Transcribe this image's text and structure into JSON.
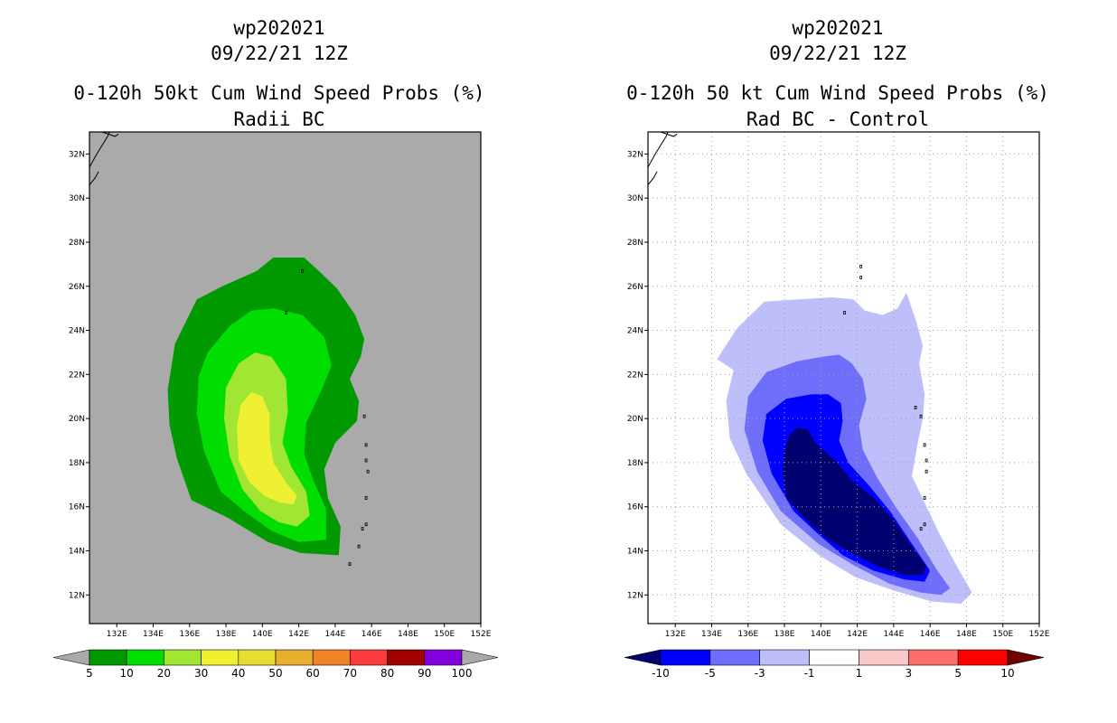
{
  "chart_data": [
    {
      "type": "heatmap",
      "title_lines": [
        "wp202021",
        "09/22/21 12Z",
        "0-120h 50kt Cum Wind Speed Probs (%)",
        "Radii BC"
      ],
      "xlabel": "",
      "ylabel": "",
      "xlim": [
        130.5,
        152.0
      ],
      "ylim": [
        10.7,
        33.0
      ],
      "x_ticks": [
        "132E",
        "134E",
        "136E",
        "138E",
        "140E",
        "142E",
        "144E",
        "146E",
        "148E",
        "150E",
        "152E"
      ],
      "y_ticks": [
        "12N",
        "14N",
        "16N",
        "18N",
        "20N",
        "22N",
        "24N",
        "26N",
        "28N",
        "30N",
        "32N"
      ],
      "grid": false,
      "background": "#aaaaaa",
      "colorbar": {
        "labels": [
          "5",
          "10",
          "20",
          "30",
          "40",
          "50",
          "60",
          "70",
          "80",
          "90",
          "100"
        ],
        "colors": [
          "#009900",
          "#00dd00",
          "#a0e632",
          "#f0f032",
          "#e6dc32",
          "#e6af2d",
          "#f08228",
          "#fa3c3c",
          "#a00000",
          "#8200dc"
        ],
        "below_color": "#aaaaaa",
        "above_color": "#aaaaaa"
      },
      "contours": [
        {
          "level": "5",
          "color": "#009900",
          "polygon": [
            [
              140.6,
              27.3
            ],
            [
              142.3,
              27.3
            ],
            [
              143.1,
              26.7
            ],
            [
              144.1,
              25.9
            ],
            [
              145.1,
              24.7
            ],
            [
              145.6,
              23.6
            ],
            [
              145.4,
              22.8
            ],
            [
              144.8,
              21.8
            ],
            [
              145.3,
              20.8
            ],
            [
              145.2,
              19.9
            ],
            [
              144.0,
              18.9
            ],
            [
              143.4,
              17.7
            ],
            [
              143.6,
              16.4
            ],
            [
              144.3,
              15.1
            ],
            [
              144.2,
              13.8
            ],
            [
              142.1,
              13.9
            ],
            [
              140.3,
              14.4
            ],
            [
              138.1,
              15.5
            ],
            [
              136.1,
              16.3
            ],
            [
              135.3,
              18.2
            ],
            [
              134.9,
              19.7
            ],
            [
              134.8,
              21.3
            ],
            [
              135.2,
              23.4
            ],
            [
              136.4,
              25.4
            ],
            [
              137.8,
              26.0
            ],
            [
              139.7,
              26.7
            ]
          ]
        },
        {
          "level": "10",
          "color": "#00dd00",
          "polygon": [
            [
              140.6,
              25.0
            ],
            [
              142.2,
              24.7
            ],
            [
              143.4,
              23.7
            ],
            [
              143.8,
              22.4
            ],
            [
              143.2,
              21.2
            ],
            [
              142.4,
              19.8
            ],
            [
              142.3,
              18.4
            ],
            [
              142.8,
              17.2
            ],
            [
              143.5,
              15.9
            ],
            [
              143.5,
              14.5
            ],
            [
              142.0,
              14.4
            ],
            [
              140.5,
              14.9
            ],
            [
              139.0,
              15.8
            ],
            [
              137.7,
              16.7
            ],
            [
              136.8,
              18.5
            ],
            [
              136.4,
              20.2
            ],
            [
              136.5,
              21.9
            ],
            [
              137.0,
              23.0
            ],
            [
              138.2,
              24.2
            ],
            [
              139.4,
              24.9
            ]
          ]
        },
        {
          "level": "20",
          "color": "#a0e632",
          "polygon": [
            [
              139.6,
              23.0
            ],
            [
              140.5,
              22.8
            ],
            [
              141.3,
              21.8
            ],
            [
              141.4,
              20.3
            ],
            [
              141.1,
              18.9
            ],
            [
              141.6,
              17.8
            ],
            [
              142.4,
              16.7
            ],
            [
              142.6,
              15.6
            ],
            [
              141.9,
              15.1
            ],
            [
              140.9,
              15.3
            ],
            [
              139.9,
              15.8
            ],
            [
              138.9,
              16.8
            ],
            [
              138.2,
              18.3
            ],
            [
              137.9,
              20.0
            ],
            [
              138.0,
              21.4
            ],
            [
              138.7,
              22.5
            ]
          ]
        },
        {
          "level": "30",
          "color": "#f0f032",
          "polygon": [
            [
              139.4,
              21.2
            ],
            [
              140.0,
              21.0
            ],
            [
              140.4,
              20.2
            ],
            [
              140.4,
              19.1
            ],
            [
              140.6,
              18.0
            ],
            [
              141.3,
              17.1
            ],
            [
              141.9,
              16.5
            ],
            [
              141.7,
              16.1
            ],
            [
              140.9,
              16.2
            ],
            [
              140.1,
              16.5
            ],
            [
              139.3,
              17.1
            ],
            [
              138.7,
              18.1
            ],
            [
              138.6,
              19.6
            ],
            [
              138.8,
              20.6
            ]
          ]
        }
      ],
      "coastlines": {
        "japan_lines": [
          [
            [
              130.5,
              31.4
            ],
            [
              130.9,
              32.0
            ],
            [
              131.2,
              32.4
            ],
            [
              131.5,
              32.8
            ],
            [
              131.6,
              33.0
            ]
          ],
          [
            [
              130.5,
              30.6
            ],
            [
              130.8,
              30.9
            ],
            [
              131.0,
              31.2
            ]
          ],
          [
            [
              131.2,
              33.0
            ],
            [
              131.9,
              32.8
            ],
            [
              132.1,
              32.9
            ]
          ]
        ],
        "islands": [
          [
            142.2,
            26.7
          ],
          [
            141.3,
            24.8
          ],
          [
            145.6,
            20.1
          ],
          [
            145.7,
            18.8
          ],
          [
            145.7,
            18.1
          ],
          [
            145.8,
            17.6
          ],
          [
            145.7,
            16.4
          ],
          [
            145.7,
            15.2
          ],
          [
            145.5,
            15.0
          ],
          [
            145.3,
            14.2
          ],
          [
            144.8,
            13.4
          ]
        ]
      }
    },
    {
      "type": "heatmap",
      "title_lines": [
        "wp202021",
        "09/22/21 12Z",
        "0-120h 50 kt Cum Wind Speed Probs (%)",
        "Rad BC - Control"
      ],
      "xlabel": "",
      "ylabel": "",
      "xlim": [
        130.5,
        152.0
      ],
      "ylim": [
        10.7,
        33.0
      ],
      "x_ticks": [
        "132E",
        "134E",
        "136E",
        "138E",
        "140E",
        "142E",
        "144E",
        "146E",
        "148E",
        "150E",
        "152E"
      ],
      "y_ticks": [
        "12N",
        "14N",
        "16N",
        "18N",
        "20N",
        "22N",
        "24N",
        "26N",
        "28N",
        "30N",
        "32N"
      ],
      "grid": true,
      "background": "#ffffff",
      "colorbar": {
        "labels": [
          "-10",
          "-5",
          "-3",
          "-1",
          "1",
          "3",
          "5",
          "10"
        ],
        "colors": [
          "#0000ff",
          "#6e6efa",
          "#bebefa",
          "#ffffff",
          "#fac8c8",
          "#fa6e6e",
          "#ff0000"
        ],
        "below_color": "#000070",
        "above_color": "#700000"
      },
      "contours": [
        {
          "level": "-1",
          "color": "#bebefa",
          "polygon": [
            [
              140.6,
              25.5
            ],
            [
              141.8,
              25.4
            ],
            [
              142.4,
              24.9
            ],
            [
              143.4,
              24.7
            ],
            [
              144.2,
              25.0
            ],
            [
              144.7,
              25.7
            ],
            [
              145.2,
              24.5
            ],
            [
              145.6,
              23.3
            ],
            [
              145.4,
              22.5
            ],
            [
              145.7,
              21.1
            ],
            [
              145.6,
              20.0
            ],
            [
              145.3,
              18.8
            ],
            [
              145.0,
              17.4
            ],
            [
              146.5,
              14.8
            ],
            [
              147.4,
              13.4
            ],
            [
              148.3,
              12.1
            ],
            [
              147.7,
              11.6
            ],
            [
              146.1,
              11.7
            ],
            [
              144.0,
              12.2
            ],
            [
              141.9,
              12.8
            ],
            [
              139.9,
              13.8
            ],
            [
              137.8,
              15.2
            ],
            [
              135.9,
              17.5
            ],
            [
              135.0,
              19.1
            ],
            [
              134.8,
              20.8
            ],
            [
              135.2,
              22.2
            ],
            [
              134.3,
              22.7
            ],
            [
              135.4,
              24.1
            ],
            [
              136.9,
              25.3
            ],
            [
              138.7,
              25.4
            ]
          ]
        },
        {
          "level": "-3",
          "color": "#6e6efa",
          "polygon": [
            [
              140.1,
              22.8
            ],
            [
              141.0,
              22.9
            ],
            [
              141.7,
              22.5
            ],
            [
              142.3,
              21.8
            ],
            [
              142.5,
              20.9
            ],
            [
              142.1,
              19.7
            ],
            [
              142.3,
              18.6
            ],
            [
              143.1,
              17.3
            ],
            [
              144.1,
              16.0
            ],
            [
              145.3,
              14.6
            ],
            [
              146.4,
              13.1
            ],
            [
              147.1,
              12.3
            ],
            [
              146.6,
              12.0
            ],
            [
              145.5,
              12.1
            ],
            [
              143.8,
              12.5
            ],
            [
              141.9,
              13.3
            ],
            [
              139.9,
              14.3
            ],
            [
              137.8,
              15.8
            ],
            [
              136.5,
              17.6
            ],
            [
              135.8,
              19.5
            ],
            [
              136.0,
              21.0
            ],
            [
              137.0,
              22.1
            ],
            [
              138.7,
              22.6
            ]
          ]
        },
        {
          "level": "-5",
          "color": "#0000ff",
          "polygon": [
            [
              139.5,
              21.1
            ],
            [
              140.4,
              21.1
            ],
            [
              141.1,
              20.7
            ],
            [
              141.2,
              19.9
            ],
            [
              141.0,
              19.0
            ],
            [
              141.5,
              18.0
            ],
            [
              142.6,
              17.0
            ],
            [
              143.8,
              15.8
            ],
            [
              145.1,
              14.2
            ],
            [
              146.0,
              13.1
            ],
            [
              145.7,
              12.6
            ],
            [
              144.6,
              12.7
            ],
            [
              142.9,
              13.1
            ],
            [
              141.2,
              13.8
            ],
            [
              139.8,
              14.8
            ],
            [
              138.5,
              15.8
            ],
            [
              137.3,
              17.5
            ],
            [
              136.8,
              19.0
            ],
            [
              137.0,
              20.2
            ],
            [
              138.1,
              20.9
            ]
          ]
        },
        {
          "level": "-10",
          "color": "#000070",
          "polygon": [
            [
              138.7,
              19.6
            ],
            [
              139.3,
              19.5
            ],
            [
              139.7,
              18.9
            ],
            [
              140.8,
              18.1
            ],
            [
              141.7,
              17.2
            ],
            [
              142.9,
              16.4
            ],
            [
              144.0,
              15.4
            ],
            [
              145.0,
              14.2
            ],
            [
              145.8,
              13.3
            ],
            [
              145.6,
              12.9
            ],
            [
              144.6,
              12.9
            ],
            [
              143.1,
              13.3
            ],
            [
              141.7,
              13.9
            ],
            [
              140.4,
              14.5
            ],
            [
              139.2,
              15.4
            ],
            [
              138.1,
              16.4
            ],
            [
              137.9,
              17.6
            ],
            [
              138.0,
              18.6
            ],
            [
              138.3,
              19.3
            ]
          ]
        }
      ],
      "coastlines": {
        "japan_lines": [
          [
            [
              130.5,
              31.4
            ],
            [
              130.9,
              32.0
            ],
            [
              131.2,
              32.4
            ],
            [
              131.5,
              32.8
            ],
            [
              131.6,
              33.0
            ]
          ],
          [
            [
              130.5,
              30.6
            ],
            [
              130.8,
              30.9
            ],
            [
              131.0,
              31.2
            ]
          ],
          [
            [
              131.2,
              33.0
            ],
            [
              131.9,
              32.8
            ],
            [
              132.1,
              32.9
            ]
          ]
        ],
        "islands": [
          [
            142.2,
            26.9
          ],
          [
            142.2,
            26.4
          ],
          [
            141.3,
            24.8
          ],
          [
            145.2,
            20.5
          ],
          [
            145.5,
            20.1
          ],
          [
            145.7,
            18.8
          ],
          [
            145.8,
            18.1
          ],
          [
            145.8,
            17.6
          ],
          [
            145.7,
            16.4
          ],
          [
            145.7,
            15.2
          ],
          [
            145.5,
            15.0
          ]
        ]
      }
    }
  ]
}
